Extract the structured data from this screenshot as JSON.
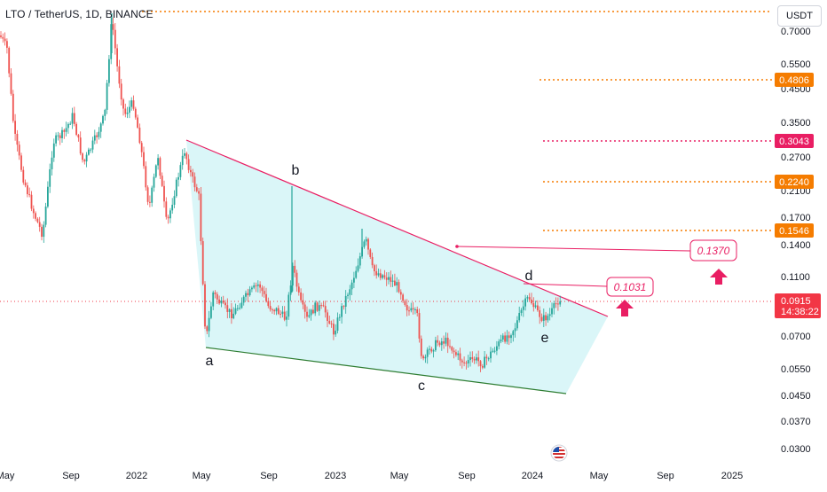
{
  "header": {
    "title": "LTO / TetherUS, 1D, BINANCE",
    "currency": "USDT"
  },
  "colors": {
    "candle_up": "#26a69a",
    "candle_down": "#ef5350",
    "wedge_fill": "#d4f4f7",
    "upper_trendline": "#e91e63",
    "lower_trendline": "#2e7d32",
    "orange_level": "#f57c00",
    "pink_level": "#e91e63",
    "current_price": "#f23645"
  },
  "chart_data": {
    "type": "candlestick",
    "y_scale": "log",
    "y_ticks": [
      "0.7000",
      "0.5500",
      "0.4500",
      "0.3500",
      "0.2700",
      "0.2100",
      "0.1700",
      "0.1400",
      "0.1100",
      "0.0700",
      "0.0550",
      "0.0450",
      "0.0370",
      "0.0300"
    ],
    "x_ticks": [
      "May",
      "Sep",
      "2022",
      "May",
      "Sep",
      "2023",
      "May",
      "Sep",
      "2024",
      "May",
      "Sep",
      "2025"
    ],
    "current_price": {
      "value": 0.0915,
      "label": "0.0915",
      "countdown": "14:38:22"
    },
    "levels": [
      {
        "value": 0.4806,
        "label": "0.4806",
        "color": "orange"
      },
      {
        "value": 0.3043,
        "label": "0.3043",
        "color": "pink"
      },
      {
        "value": 0.224,
        "label": "0.2240",
        "color": "orange"
      },
      {
        "value": 0.1546,
        "label": "0.1546",
        "color": "orange"
      }
    ],
    "targets": [
      {
        "value": 0.137,
        "label": "0.1370"
      },
      {
        "value": 0.1031,
        "label": "0.1031"
      }
    ],
    "wave_labels": [
      "a",
      "b",
      "c",
      "d",
      "e"
    ]
  }
}
